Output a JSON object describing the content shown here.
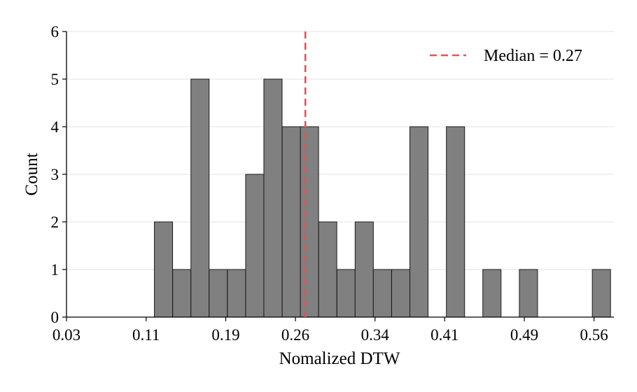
{
  "chart_data": {
    "type": "bar",
    "title": "",
    "xlabel": "Nomalized DTW",
    "ylabel": "Count",
    "x_range": [
      0.03,
      0.58
    ],
    "ylim": [
      0,
      6
    ],
    "y_ticks": [
      0,
      1,
      2,
      3,
      4,
      5,
      6
    ],
    "x_ticks": [
      {
        "value": 0.03,
        "label": "0.03"
      },
      {
        "value": 0.11,
        "label": "0.11"
      },
      {
        "value": 0.19,
        "label": "0.19"
      },
      {
        "value": 0.26,
        "label": "0.26"
      },
      {
        "value": 0.34,
        "label": "0.34"
      },
      {
        "value": 0.41,
        "label": "0.41"
      },
      {
        "value": 0.49,
        "label": "0.49"
      },
      {
        "value": 0.56,
        "label": "0.56"
      }
    ],
    "bin_width": 0.0183,
    "bins": [
      {
        "left": 0.1183,
        "count": 2
      },
      {
        "left": 0.1367,
        "count": 1
      },
      {
        "left": 0.155,
        "count": 5
      },
      {
        "left": 0.1733,
        "count": 1
      },
      {
        "left": 0.1917,
        "count": 1
      },
      {
        "left": 0.21,
        "count": 3
      },
      {
        "left": 0.2283,
        "count": 5
      },
      {
        "left": 0.2467,
        "count": 4
      },
      {
        "left": 0.265,
        "count": 4
      },
      {
        "left": 0.2833,
        "count": 2
      },
      {
        "left": 0.3017,
        "count": 1
      },
      {
        "left": 0.32,
        "count": 2
      },
      {
        "left": 0.3383,
        "count": 1
      },
      {
        "left": 0.3567,
        "count": 1
      },
      {
        "left": 0.375,
        "count": 4
      },
      {
        "left": 0.3933,
        "count": 0
      },
      {
        "left": 0.4117,
        "count": 4
      },
      {
        "left": 0.43,
        "count": 0
      },
      {
        "left": 0.4483,
        "count": 1
      },
      {
        "left": 0.4667,
        "count": 0
      },
      {
        "left": 0.485,
        "count": 1
      },
      {
        "left": 0.5033,
        "count": 0
      },
      {
        "left": 0.5217,
        "count": 0
      },
      {
        "left": 0.54,
        "count": 0
      },
      {
        "left": 0.5583,
        "count": 1
      }
    ],
    "median": {
      "value": 0.27,
      "label": "Median = 0.27",
      "color": "#e05555"
    },
    "bar_color": "#808080",
    "bar_edge_color": "#1a1a1a",
    "grid": true,
    "legend_position": "top-right"
  }
}
